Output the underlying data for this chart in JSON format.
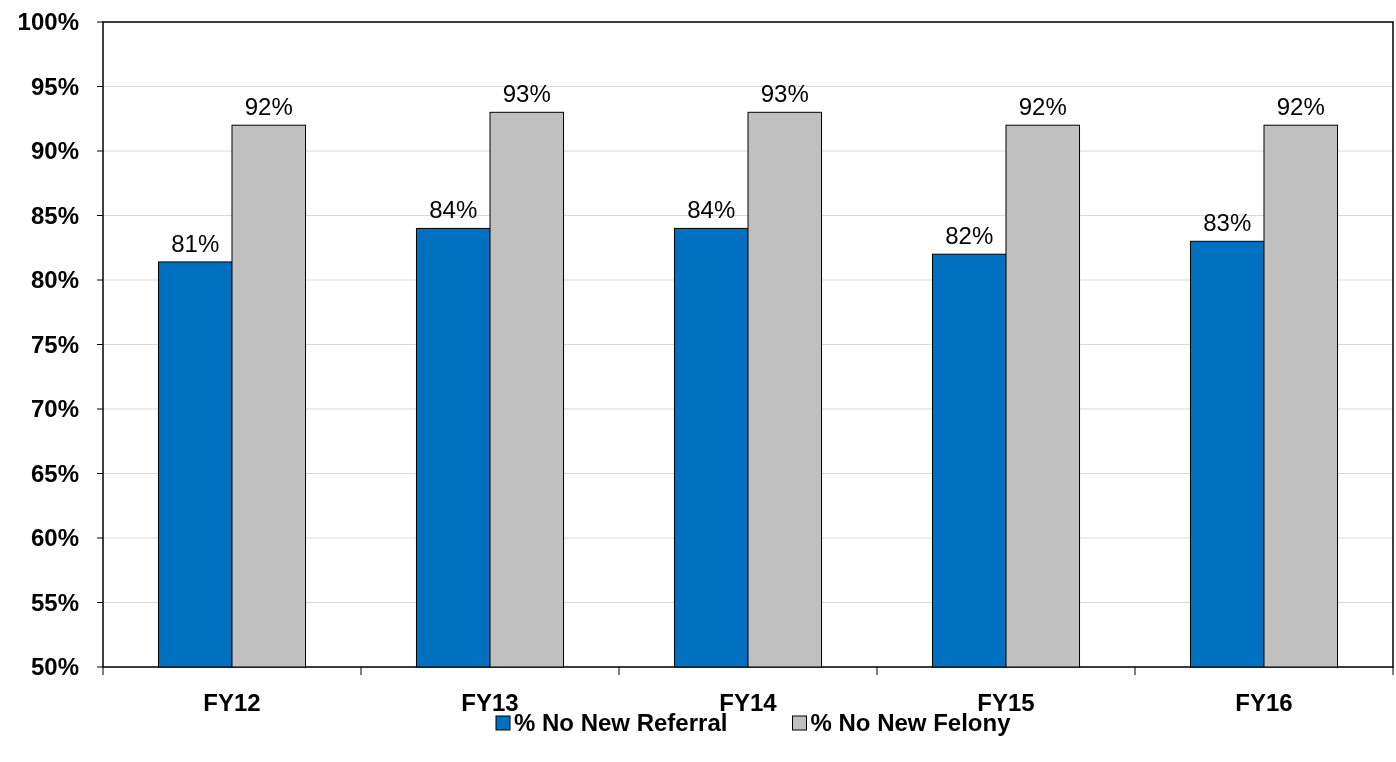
{
  "chart_data": {
    "type": "bar",
    "categories": [
      "FY12",
      "FY13",
      "FY14",
      "FY15",
      "FY16"
    ],
    "series": [
      {
        "name": "% No New Referral",
        "color": "#0070c0",
        "values": [
          81.4,
          84,
          84,
          82,
          83
        ],
        "value_labels": [
          "81%",
          "84%",
          "84%",
          "82%",
          "83%"
        ]
      },
      {
        "name": "% No New Felony",
        "color": "#c0c0c0",
        "values": [
          92,
          93,
          93,
          92,
          92
        ],
        "value_labels": [
          "92%",
          "93%",
          "93%",
          "92%",
          "92%"
        ]
      }
    ],
    "ylim": [
      50,
      100
    ],
    "yticks": [
      {
        "value": 50,
        "label": "50%"
      },
      {
        "value": 55,
        "label": "55%"
      },
      {
        "value": 60,
        "label": "60%"
      },
      {
        "value": 65,
        "label": "65%"
      },
      {
        "value": 70,
        "label": "70%"
      },
      {
        "value": 75,
        "label": "75%"
      },
      {
        "value": 80,
        "label": "80%"
      },
      {
        "value": 85,
        "label": "85%"
      },
      {
        "value": 90,
        "label": "90%"
      },
      {
        "value": 95,
        "label": "95%"
      },
      {
        "value": 100,
        "label": "100%"
      }
    ],
    "grid": "y",
    "legend": "bottom"
  }
}
